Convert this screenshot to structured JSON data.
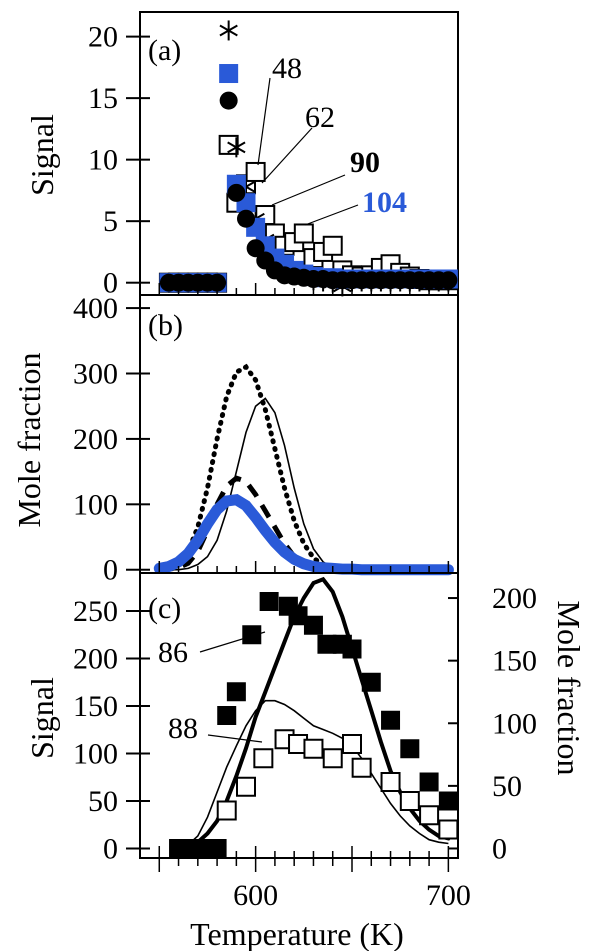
{
  "figure": {
    "xlabel": "Temperature (K)",
    "xticks": [
      "600",
      "700"
    ]
  },
  "chart_data": [
    {
      "type": "scatter",
      "panel_label": "(a)",
      "ylabel": "Signal",
      "xlim": [
        540,
        705
      ],
      "ylim": [
        -1,
        22
      ],
      "yticks": [
        0,
        5,
        10,
        15,
        20
      ],
      "ytick_labels": [
        "0",
        "5",
        "10",
        "15",
        "20"
      ],
      "grid": false,
      "annotations": [
        {
          "text": "48",
          "bold": false,
          "color": "#000000"
        },
        {
          "text": "62",
          "bold": false,
          "color": "#000000"
        },
        {
          "text": "90",
          "bold": true,
          "color": "#000000"
        },
        {
          "text": "104",
          "bold": true,
          "color": "#2a5ad8"
        }
      ],
      "series": [
        {
          "marker": "open-square",
          "x": [
            555,
            560,
            565,
            570,
            575,
            580,
            586,
            590,
            595,
            600,
            605,
            610,
            615,
            620,
            625,
            630,
            635,
            640,
            645,
            650,
            655,
            660,
            665,
            670,
            675,
            680,
            685,
            690,
            695,
            700
          ],
          "y": [
            0,
            0,
            0,
            0,
            0,
            0,
            11.2,
            6.5,
            8.0,
            9.0,
            5.5,
            4.0,
            3.0,
            3.3,
            4.0,
            2.0,
            2.5,
            3.0,
            1.0,
            0.6,
            0.5,
            0.6,
            1.2,
            1.5,
            0.8,
            0.5,
            0.3,
            0.2,
            0.2,
            0.2
          ]
        },
        {
          "marker": "asterisk",
          "x": [
            555,
            560,
            565,
            570,
            575,
            580,
            586,
            590,
            595,
            600,
            605,
            610,
            615,
            620,
            625,
            630,
            635,
            640,
            645,
            650,
            655,
            660,
            665,
            670,
            675,
            680,
            685,
            690,
            695,
            700
          ],
          "y": [
            0,
            0,
            0,
            0,
            0,
            0,
            20.5,
            11.0,
            7.8,
            5.2,
            3.5,
            2.0,
            1.3,
            0.9,
            0.5,
            0.2,
            0.1,
            0.0,
            -0.3,
            0.1,
            0.1,
            0.1,
            0.1,
            0.1,
            0.1,
            0.1,
            0.1,
            0.1,
            0.1,
            0.1
          ]
        },
        {
          "marker": "filled-square",
          "color": "#2a5ad8",
          "x": [
            555,
            560,
            565,
            570,
            575,
            580,
            586,
            590,
            595,
            600,
            605,
            610,
            615,
            620,
            625,
            630,
            635,
            640,
            645,
            650,
            655,
            660,
            665,
            670,
            675,
            680,
            685,
            690,
            695,
            700
          ],
          "y": [
            0,
            0,
            0,
            0,
            0,
            0,
            17.0,
            8.0,
            6.5,
            4.5,
            3.0,
            2.0,
            1.5,
            1.0,
            0.7,
            0.5,
            0.4,
            0.4,
            0.3,
            0.3,
            0.3,
            0.3,
            0.3,
            0.3,
            0.3,
            0.3,
            0.3,
            0.3,
            0.3,
            0.3
          ]
        },
        {
          "marker": "filled-circle",
          "x": [
            555,
            560,
            565,
            570,
            575,
            580,
            586,
            590,
            595,
            600,
            605,
            610,
            615,
            620,
            625,
            630,
            635,
            640,
            645,
            650,
            655,
            660,
            665,
            670,
            675,
            680,
            685,
            690,
            695,
            700
          ],
          "y": [
            0,
            0,
            0,
            0,
            0,
            0,
            14.8,
            7.3,
            5.2,
            2.8,
            1.8,
            1.0,
            0.6,
            0.5,
            0.4,
            0.3,
            0.3,
            0.2,
            0.2,
            0.2,
            0.2,
            0.2,
            0.2,
            0.2,
            0.2,
            0.2,
            0.2,
            0.2,
            0.2,
            0.2
          ]
        }
      ]
    },
    {
      "type": "line",
      "panel_label": "(b)",
      "ylabel": "Mole fraction",
      "xlim": [
        540,
        705
      ],
      "ylim": [
        -5,
        420
      ],
      "yticks": [
        0,
        100,
        200,
        300,
        400
      ],
      "ytick_labels": [
        "0",
        "100",
        "200",
        "300",
        "400"
      ],
      "grid": false,
      "x": [
        550,
        555,
        560,
        565,
        570,
        575,
        580,
        585,
        590,
        595,
        600,
        605,
        610,
        615,
        620,
        625,
        630,
        635,
        640,
        645,
        650,
        655,
        660,
        665,
        670,
        675,
        680,
        685,
        690,
        695,
        700
      ],
      "series": [
        {
          "style": "dotted",
          "color": "#000000",
          "values": [
            1,
            3,
            10,
            28,
            65,
            125,
            200,
            265,
            302,
            310,
            290,
            245,
            185,
            125,
            75,
            40,
            18,
            7,
            2,
            0,
            0,
            0,
            0,
            0,
            0,
            0,
            0,
            0,
            0,
            0,
            0
          ]
        },
        {
          "style": "solid-thin",
          "color": "#000000",
          "values": [
            0,
            0,
            0,
            2,
            8,
            20,
            45,
            90,
            150,
            210,
            250,
            262,
            240,
            190,
            125,
            70,
            32,
            12,
            3,
            1,
            0,
            0,
            0,
            0,
            0,
            0,
            0,
            0,
            0,
            0,
            0
          ]
        },
        {
          "style": "dashed-thick",
          "color": "#000000",
          "values": [
            0,
            1,
            3,
            10,
            28,
            60,
            100,
            128,
            140,
            135,
            115,
            90,
            65,
            40,
            20,
            8,
            3,
            1,
            0,
            0,
            0,
            0,
            0,
            0,
            0,
            0,
            0,
            0,
            0,
            0,
            0
          ]
        },
        {
          "style": "solid-thick",
          "color": "#2a5ad8",
          "values": [
            2,
            5,
            12,
            25,
            45,
            70,
            92,
            105,
            107,
            98,
            80,
            60,
            42,
            27,
            16,
            9,
            5,
            3,
            2,
            1,
            1,
            0,
            0,
            0,
            0,
            0,
            0,
            0,
            0,
            0,
            0
          ]
        }
      ]
    },
    {
      "type": "scatter",
      "panel_label": "(c)",
      "ylabel": "Signal",
      "y2label": "Mole fraction",
      "xlim": [
        540,
        705
      ],
      "ylim": [
        -10,
        290
      ],
      "yticks": [
        0,
        50,
        100,
        150,
        200,
        250
      ],
      "ytick_labels": [
        "0",
        "50",
        "100",
        "150",
        "200",
        "250"
      ],
      "y2lim": [
        -7.6,
        220
      ],
      "y2ticks": [
        0,
        50,
        100,
        150,
        200
      ],
      "y2tick_labels": [
        "0",
        "50",
        "100",
        "150",
        "200"
      ],
      "grid": false,
      "annotations": [
        {
          "text": "86",
          "target": "filled-square"
        },
        {
          "text": "88",
          "target": "open-square"
        }
      ],
      "series": [
        {
          "marker": "filled-square",
          "x": [
            560,
            565,
            570,
            575,
            580,
            585,
            590,
            598,
            607,
            617,
            622,
            630,
            637,
            645,
            650,
            660,
            670,
            680,
            690,
            700
          ],
          "y": [
            0,
            0,
            0,
            0,
            0,
            140,
            165,
            225,
            260,
            255,
            245,
            235,
            215,
            215,
            210,
            175,
            135,
            105,
            70,
            50
          ]
        },
        {
          "marker": "open-square",
          "x": [
            585,
            595,
            604,
            615,
            622,
            630,
            640,
            650,
            655,
            670,
            680,
            690,
            700
          ],
          "y": [
            40,
            65,
            95,
            115,
            110,
            105,
            95,
            110,
            85,
            70,
            50,
            35,
            20
          ]
        }
      ],
      "lines": [
        {
          "style": "solid-thick",
          "axis": "right",
          "x": [
            565,
            570,
            575,
            580,
            585,
            590,
            595,
            600,
            605,
            610,
            615,
            620,
            625,
            630,
            635,
            640,
            645,
            650,
            655,
            660,
            665,
            670,
            675,
            680,
            685,
            690,
            695,
            700
          ],
          "values": [
            0,
            5,
            12,
            22,
            38,
            58,
            80,
            105,
            125,
            145,
            165,
            185,
            200,
            212,
            215,
            205,
            185,
            160,
            135,
            110,
            85,
            62,
            45,
            32,
            22,
            15,
            10,
            8
          ]
        },
        {
          "style": "solid-thin",
          "axis": "right",
          "x": [
            560,
            565,
            570,
            575,
            580,
            585,
            590,
            595,
            600,
            605,
            610,
            615,
            620,
            625,
            630,
            635,
            640,
            645,
            650,
            655,
            660,
            665,
            670,
            675,
            680,
            685,
            690,
            695,
            700
          ],
          "values": [
            0,
            3,
            10,
            25,
            45,
            65,
            82,
            98,
            110,
            118,
            118,
            115,
            110,
            104,
            98,
            95,
            92,
            88,
            82,
            72,
            60,
            48,
            36,
            26,
            18,
            12,
            7,
            5,
            4
          ]
        }
      ]
    }
  ]
}
